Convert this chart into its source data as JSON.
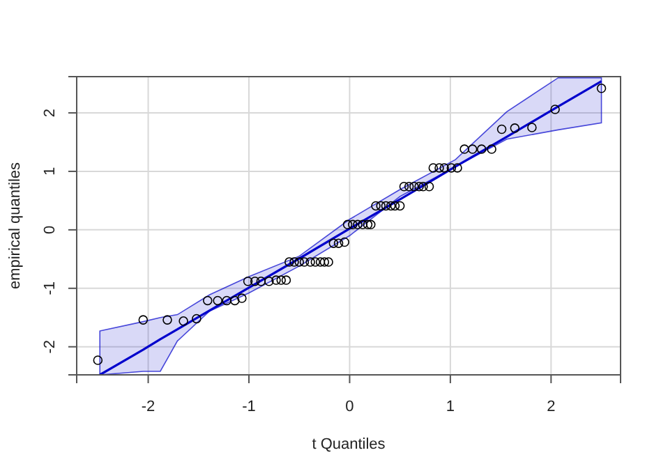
{
  "chart_data": {
    "type": "scatter",
    "xlabel": "t Quantiles",
    "ylabel": "empirical quantiles",
    "xlim": [
      -2.71,
      2.69
    ],
    "ylim": [
      -2.48,
      2.62
    ],
    "xticks": [
      -2,
      -1,
      0,
      1,
      2
    ],
    "yticks": [
      -2,
      -1,
      0,
      1,
      2
    ],
    "grid": true,
    "marker": "circle",
    "series": [
      {
        "type": "line",
        "color": "#0000cc",
        "line_style": "solid",
        "marker": "none",
        "x": [
          -2.48,
          -2.05,
          -1.88,
          -1.71,
          -1.39,
          -1.0,
          -0.5,
          0,
          0.5,
          1.05,
          1.56,
          2.07,
          2.5
        ],
        "values": [
          -2.48,
          -2.05,
          -1.87,
          -1.7,
          -1.38,
          -0.99,
          -0.49,
          0.02,
          0.52,
          1.08,
          1.59,
          2.11,
          2.54
        ],
        "lower": [
          -2.48,
          -2.42,
          -2.42,
          -1.9,
          -1.39,
          -1.08,
          -0.62,
          -0.1,
          0.57,
          1.08,
          1.55,
          1.71,
          1.83
        ],
        "upper": [
          -1.73,
          -1.57,
          -1.5,
          -1.45,
          -1.11,
          -0.8,
          -0.45,
          0.18,
          0.69,
          1.2,
          2.02,
          2.6,
          2.6
        ]
      },
      {
        "color": "#000000",
        "x": [
          -2.5,
          -2.05,
          -1.81,
          -1.65,
          -1.52,
          -1.41,
          -1.31,
          -1.22,
          -1.14,
          -1.07,
          -1.01,
          -0.94,
          -0.88,
          -0.8,
          -0.73,
          -0.68,
          -0.63,
          -0.6,
          -0.55,
          -0.5,
          -0.45,
          -0.39,
          -0.34,
          -0.29,
          -0.25,
          -0.21,
          -0.16,
          -0.11,
          -0.05,
          -0.02,
          0.03,
          0.08,
          0.13,
          0.18,
          0.21,
          0.26,
          0.31,
          0.36,
          0.41,
          0.45,
          0.5,
          0.54,
          0.59,
          0.64,
          0.69,
          0.73,
          0.79,
          0.83,
          0.89,
          0.94,
          1.01,
          1.07,
          1.14,
          1.22,
          1.31,
          1.41,
          1.51,
          1.64,
          1.81,
          2.04,
          2.5
        ],
        "values": [
          -2.23,
          -1.54,
          -1.54,
          -1.56,
          -1.52,
          -1.21,
          -1.21,
          -1.21,
          -1.21,
          -1.17,
          -0.88,
          -0.88,
          -0.88,
          -0.88,
          -0.86,
          -0.86,
          -0.86,
          -0.55,
          -0.55,
          -0.55,
          -0.55,
          -0.55,
          -0.55,
          -0.55,
          -0.55,
          -0.55,
          -0.23,
          -0.23,
          -0.21,
          0.09,
          0.09,
          0.09,
          0.09,
          0.09,
          0.09,
          0.41,
          0.41,
          0.41,
          0.41,
          0.41,
          0.41,
          0.74,
          0.74,
          0.74,
          0.74,
          0.74,
          0.74,
          1.06,
          1.06,
          1.06,
          1.06,
          1.06,
          1.38,
          1.38,
          1.38,
          1.38,
          1.72,
          1.74,
          1.75,
          2.06,
          2.42
        ]
      }
    ]
  }
}
